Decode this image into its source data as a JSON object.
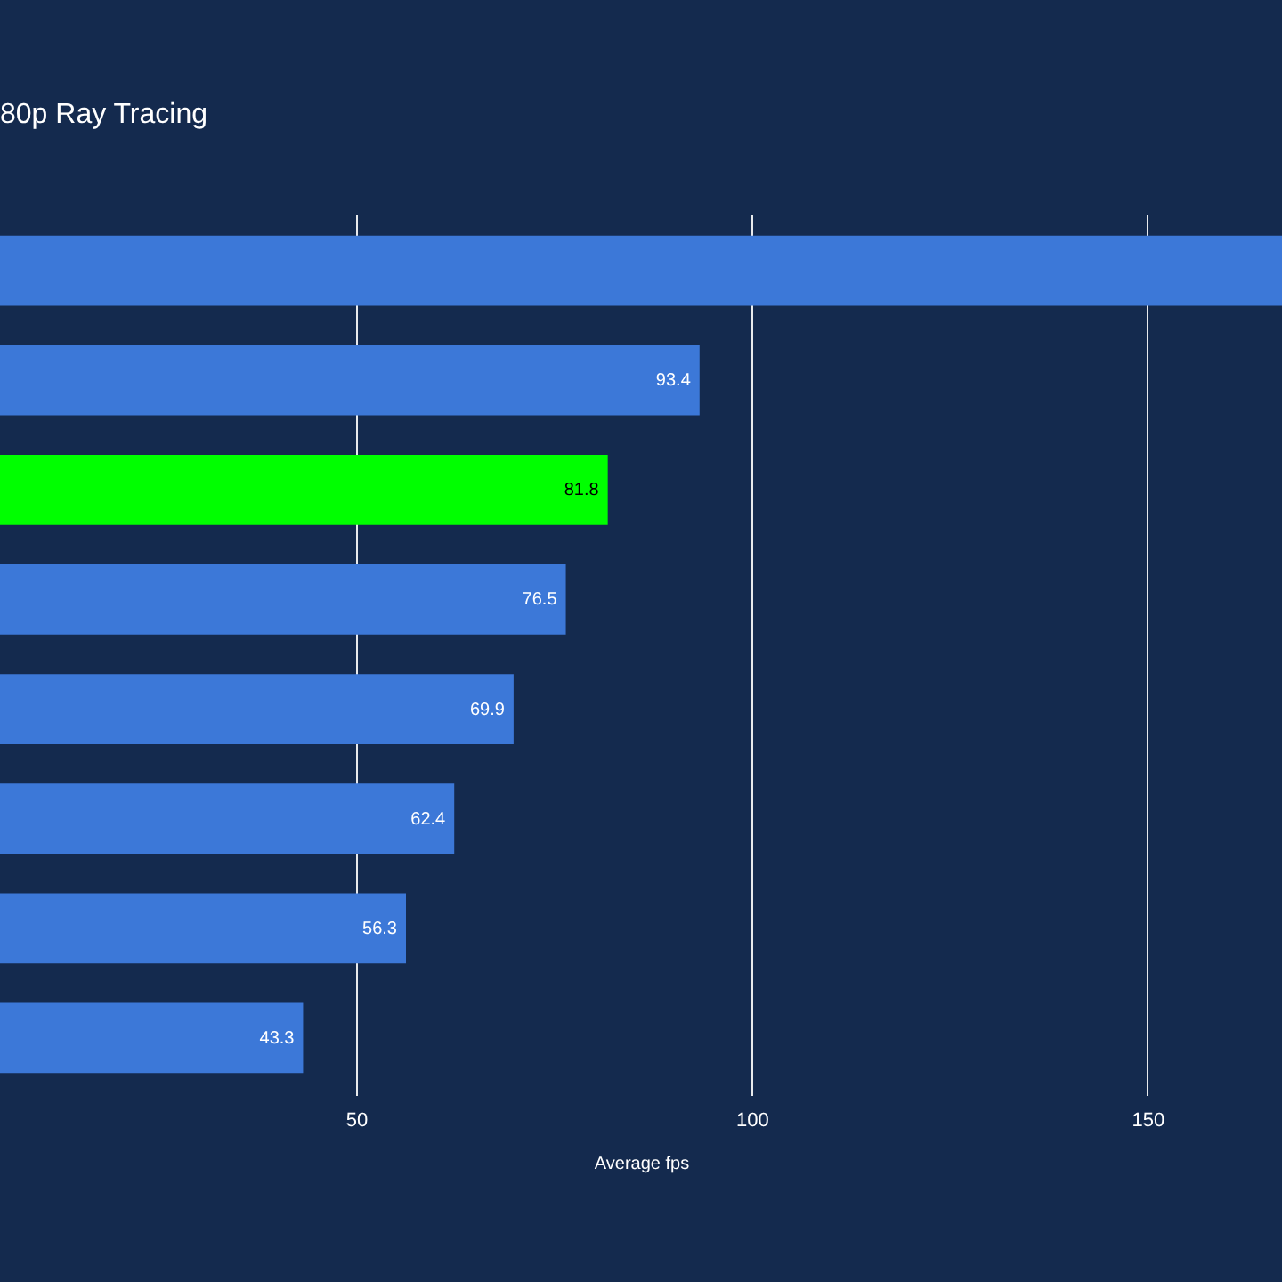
{
  "chart_data": {
    "type": "bar",
    "orientation": "horizontal",
    "title": "80p Ray Tracing",
    "xlabel": "Average fps",
    "categories": [
      null,
      null,
      null,
      null,
      null,
      null,
      null,
      null
    ],
    "values": [
      167,
      93.4,
      81.8,
      76.5,
      69.9,
      62.4,
      56.3,
      43.3
    ],
    "value_labels": [
      null,
      "93.4",
      "81.8",
      "76.5",
      "69.9",
      "62.4",
      "56.3",
      "43.3"
    ],
    "colors": [
      "#3c78d8",
      "#3c78d8",
      "#00ff00",
      "#3c78d8",
      "#3c78d8",
      "#3c78d8",
      "#3c78d8",
      "#3c78d8"
    ],
    "xlim": [
      5,
      167
    ],
    "xticks": [
      50,
      100,
      150
    ],
    "grid": "x",
    "tick_labels": "x"
  }
}
